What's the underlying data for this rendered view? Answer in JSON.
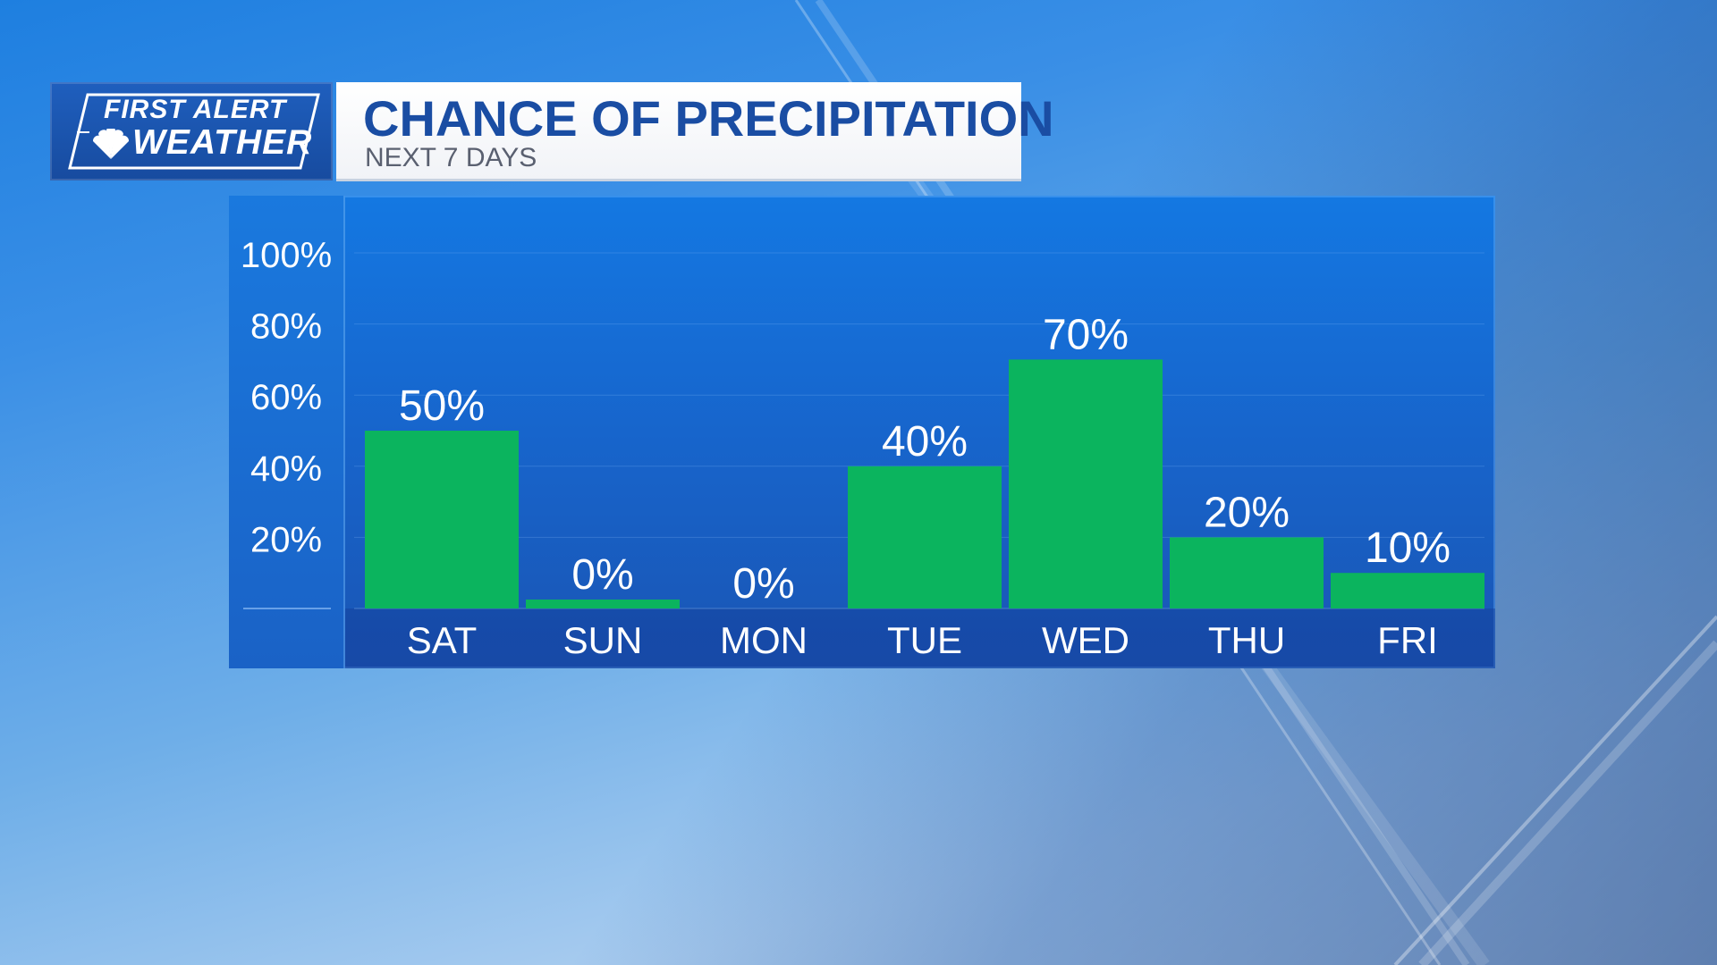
{
  "branding": {
    "logo_line1": "FIRST ALERT",
    "logo_line2": "WEATHER",
    "logo_icon": "nbc-peacock-icon"
  },
  "header": {
    "title": "CHANCE OF PRECIPITATION",
    "subtitle": "NEXT 7 DAYS"
  },
  "colors": {
    "bar": "#0bb45e",
    "title": "#1a4da3",
    "panel": "#1765cc",
    "text": "#ffffff"
  },
  "chart_data": {
    "type": "bar",
    "categories": [
      "SAT",
      "SUN",
      "MON",
      "TUE",
      "WED",
      "THU",
      "FRI"
    ],
    "values": [
      50,
      0,
      0,
      40,
      70,
      20,
      10
    ],
    "data_labels": [
      "50%",
      "0%",
      "0%",
      "40%",
      "70%",
      "20%",
      "10%"
    ],
    "title": "CHANCE OF PRECIPITATION",
    "subtitle": "NEXT 7 DAYS",
    "ylim": [
      0,
      100
    ],
    "yticks": [
      20,
      40,
      60,
      80,
      100
    ],
    "ytick_labels": [
      "20%",
      "40%",
      "60%",
      "80%",
      "100%"
    ],
    "grid": true,
    "legend": "none"
  }
}
